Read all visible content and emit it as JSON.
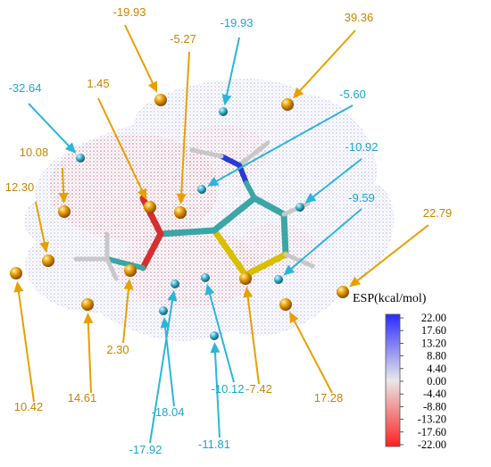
{
  "colors": {
    "maximum": "#e8a000",
    "minimum": "#2bb6d9",
    "positive_surface": "#5a64d6",
    "negative_surface": "#e06060",
    "carbon": "#3aa6a6",
    "oxygen": "#d43030",
    "nitrogen": "#2a3ad6",
    "sulfur": "#d8c000",
    "hydrogen": "#c8c8c8"
  },
  "extrema": [
    {
      "value": "-19.93",
      "type": "maximum"
    },
    {
      "value": "-5.27",
      "type": "maximum"
    },
    {
      "value": "39.36",
      "type": "maximum"
    },
    {
      "value": "1.45",
      "type": "maximum"
    },
    {
      "value": "10.08",
      "type": "maximum"
    },
    {
      "value": "12.30",
      "type": "maximum"
    },
    {
      "value": "22.79",
      "type": "maximum"
    },
    {
      "value": "10.42",
      "type": "maximum"
    },
    {
      "value": "14.61",
      "type": "maximum"
    },
    {
      "value": "2.30",
      "type": "maximum"
    },
    {
      "value": "-7.42",
      "type": "maximum"
    },
    {
      "value": "17.28",
      "type": "maximum"
    },
    {
      "value": "-19.93",
      "type": "minimum"
    },
    {
      "value": "-32.64",
      "type": "minimum"
    },
    {
      "value": "-5.60",
      "type": "minimum"
    },
    {
      "value": "-10.92",
      "type": "minimum"
    },
    {
      "value": "-9.59",
      "type": "minimum"
    },
    {
      "value": "-10.12",
      "type": "minimum"
    },
    {
      "value": "-18.04",
      "type": "minimum"
    },
    {
      "value": "-11.81",
      "type": "minimum"
    },
    {
      "value": "-17.92",
      "type": "minimum"
    }
  ],
  "colorbar": {
    "title": "ESP(kcal/mol)",
    "ticks": [
      "22.00",
      "17.60",
      "13.20",
      "8.80",
      "4.40",
      "0.00",
      "-4.40",
      "-8.80",
      "-13.20",
      "-17.60",
      "-22.00"
    ]
  }
}
